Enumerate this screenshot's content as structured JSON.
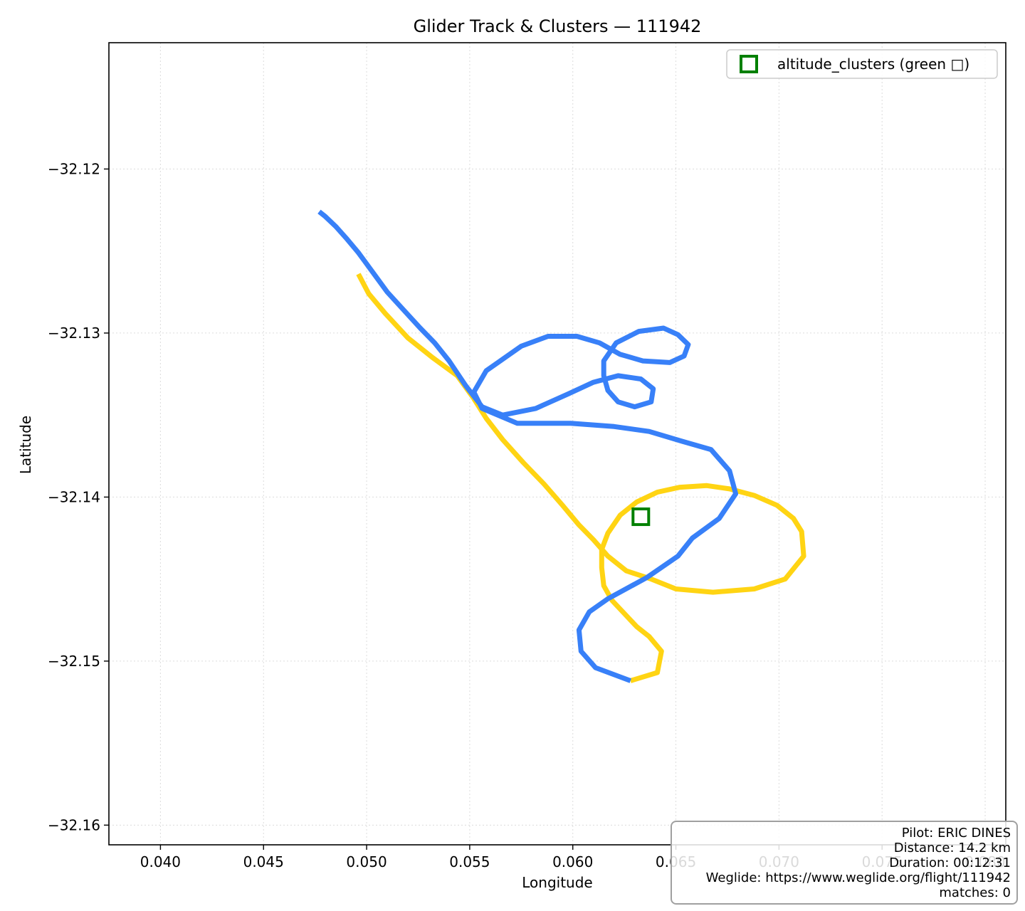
{
  "chart_data": {
    "type": "line",
    "title": "Glider Track & Clusters — 111942",
    "xlabel": "Longitude",
    "ylabel": "Latitude",
    "xlim": [
      0.0375,
      0.081
    ],
    "ylim": [
      -32.1612,
      -32.1123
    ],
    "xticks": [
      0.04,
      0.045,
      0.05,
      0.055,
      0.06,
      0.065,
      0.07,
      0.075,
      0.08
    ],
    "xtick_labels": [
      "0.040",
      "0.045",
      "0.050",
      "0.055",
      "0.060",
      "0.065",
      "0.070",
      "0.075",
      "0.080"
    ],
    "yticks": [
      -32.12,
      -32.13,
      -32.14,
      -32.15,
      -32.16
    ],
    "ytick_labels": [
      "−32.12",
      "−32.13",
      "−32.14",
      "−32.15",
      "−32.16"
    ],
    "grid": true,
    "legend_position": "top-right",
    "legend": [
      {
        "label": "altitude_clusters (green □)",
        "color": "#008000",
        "marker": "square"
      }
    ],
    "series": [
      {
        "color": "#ffd413",
        "points": [
          [
            0.0628,
            -32.1512
          ],
          [
            0.0641,
            -32.1507
          ],
          [
            0.0643,
            -32.1494
          ],
          [
            0.0637,
            -32.1485
          ],
          [
            0.0631,
            -32.1479
          ],
          [
            0.0625,
            -32.1471
          ],
          [
            0.0619,
            -32.1463
          ],
          [
            0.0615,
            -32.1454
          ],
          [
            0.0614,
            -32.1443
          ],
          [
            0.0614,
            -32.1432
          ],
          [
            0.0617,
            -32.1422
          ],
          [
            0.0623,
            -32.1411
          ],
          [
            0.0631,
            -32.1403
          ],
          [
            0.0641,
            -32.1397
          ],
          [
            0.0652,
            -32.1394
          ],
          [
            0.0665,
            -32.1393
          ],
          [
            0.0676,
            -32.1395
          ],
          [
            0.0688,
            -32.1399
          ],
          [
            0.0699,
            -32.1405
          ],
          [
            0.0707,
            -32.1413
          ],
          [
            0.0711,
            -32.1421
          ],
          [
            0.0712,
            -32.1436
          ],
          [
            0.0703,
            -32.145
          ],
          [
            0.0688,
            -32.1456
          ],
          [
            0.0668,
            -32.1458
          ],
          [
            0.065,
            -32.1456
          ],
          [
            0.0638,
            -32.145
          ],
          [
            0.0626,
            -32.1445
          ],
          [
            0.0617,
            -32.1436
          ],
          [
            0.061,
            -32.1426
          ],
          [
            0.0603,
            -32.1417
          ],
          [
            0.0595,
            -32.1405
          ],
          [
            0.0586,
            -32.1392
          ],
          [
            0.0576,
            -32.1379
          ],
          [
            0.0566,
            -32.1365
          ],
          [
            0.0558,
            -32.1352
          ],
          [
            0.0552,
            -32.134
          ],
          [
            0.0544,
            -32.1326
          ],
          [
            0.0532,
            -32.1315
          ],
          [
            0.052,
            -32.1303
          ],
          [
            0.0509,
            -32.1288
          ],
          [
            0.0501,
            -32.1276
          ],
          [
            0.0496,
            -32.1264
          ]
        ]
      },
      {
        "color": "#3880f8",
        "points": [
          [
            0.0477,
            -32.1226
          ],
          [
            0.048,
            -32.1229
          ],
          [
            0.0485,
            -32.1235
          ],
          [
            0.049,
            -32.1242
          ],
          [
            0.0496,
            -32.1251
          ],
          [
            0.0503,
            -32.1263
          ],
          [
            0.051,
            -32.1275
          ],
          [
            0.0518,
            -32.1286
          ],
          [
            0.0526,
            -32.1297
          ],
          [
            0.0533,
            -32.1306
          ],
          [
            0.054,
            -32.1317
          ],
          [
            0.0548,
            -32.1332
          ],
          [
            0.0556,
            -32.1345
          ],
          [
            0.0566,
            -32.135
          ],
          [
            0.0582,
            -32.1346
          ],
          [
            0.0598,
            -32.1337
          ],
          [
            0.061,
            -32.133
          ],
          [
            0.0622,
            -32.1326
          ],
          [
            0.0633,
            -32.1328
          ],
          [
            0.0639,
            -32.1334
          ],
          [
            0.0638,
            -32.1342
          ],
          [
            0.063,
            -32.1345
          ],
          [
            0.0622,
            -32.1342
          ],
          [
            0.0617,
            -32.1335
          ],
          [
            0.0615,
            -32.1326
          ],
          [
            0.0615,
            -32.1317
          ],
          [
            0.0621,
            -32.1306
          ],
          [
            0.0632,
            -32.1299
          ],
          [
            0.0644,
            -32.1297
          ],
          [
            0.0651,
            -32.1301
          ],
          [
            0.0656,
            -32.1307
          ],
          [
            0.0654,
            -32.1314
          ],
          [
            0.0647,
            -32.1318
          ],
          [
            0.0634,
            -32.1317
          ],
          [
            0.0623,
            -32.1313
          ],
          [
            0.0613,
            -32.1306
          ],
          [
            0.0602,
            -32.1302
          ],
          [
            0.0588,
            -32.1302
          ],
          [
            0.0575,
            -32.1308
          ],
          [
            0.0558,
            -32.1323
          ],
          [
            0.0552,
            -32.1336
          ],
          [
            0.0556,
            -32.1346
          ],
          [
            0.0573,
            -32.1355
          ],
          [
            0.0599,
            -32.1355
          ],
          [
            0.062,
            -32.1357
          ],
          [
            0.0637,
            -32.136
          ],
          [
            0.0653,
            -32.1366
          ],
          [
            0.0667,
            -32.1371
          ],
          [
            0.0676,
            -32.1384
          ],
          [
            0.0679,
            -32.1398
          ],
          [
            0.0671,
            -32.1413
          ],
          [
            0.0658,
            -32.1425
          ],
          [
            0.0651,
            -32.1436
          ],
          [
            0.0636,
            -32.1449
          ],
          [
            0.0617,
            -32.1462
          ],
          [
            0.0608,
            -32.147
          ],
          [
            0.0603,
            -32.1481
          ],
          [
            0.0604,
            -32.1494
          ],
          [
            0.0611,
            -32.1504
          ],
          [
            0.0628,
            -32.1512
          ]
        ]
      }
    ],
    "clusters": [
      [
        0.0633,
        -32.1412
      ]
    ]
  },
  "info": {
    "pilot": "Pilot: ERIC DINES",
    "distance": "Distance: 14.2 km",
    "duration": "Duration: 00:12:31",
    "weglide": "Weglide: https://www.weglide.org/flight/111942",
    "matches": "matches: 0"
  }
}
